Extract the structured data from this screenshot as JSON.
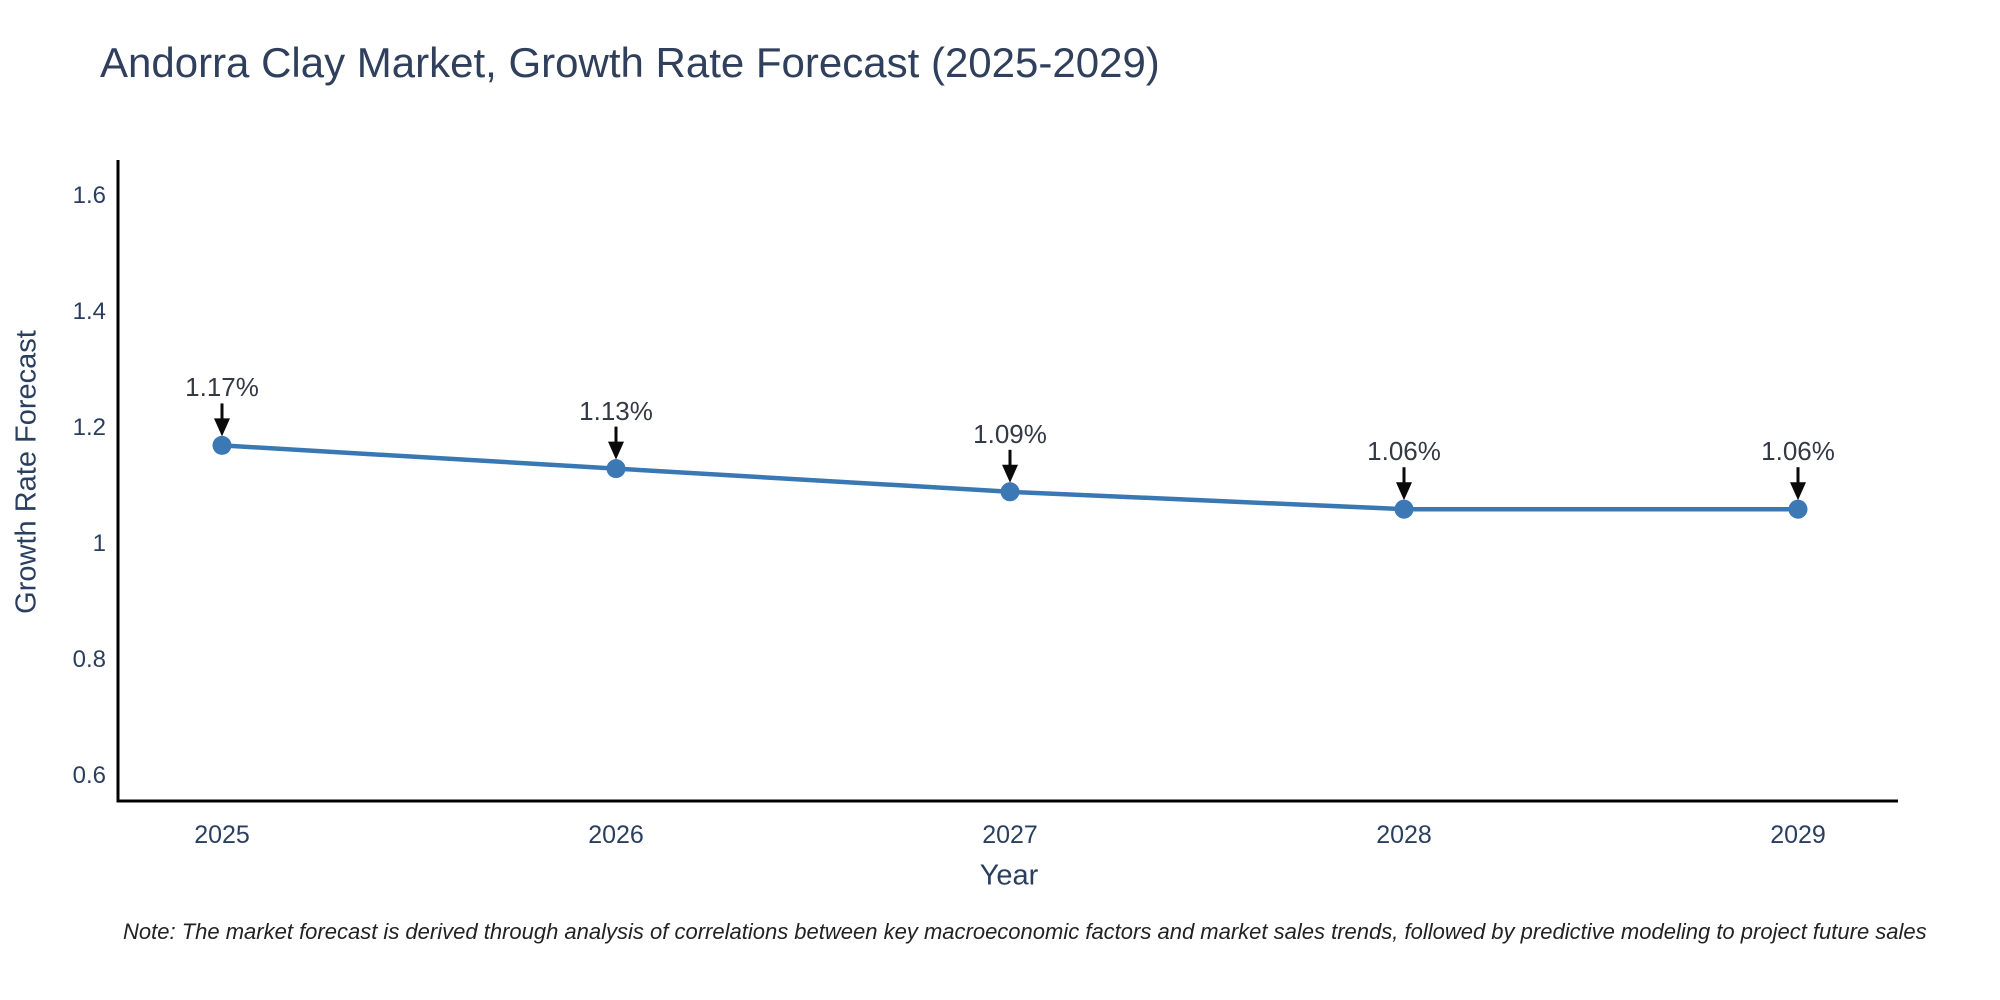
{
  "title": "Andorra Clay Market, Growth Rate Forecast (2025-2029)",
  "chart_data": {
    "type": "line",
    "x": [
      2025,
      2026,
      2027,
      2028,
      2029
    ],
    "values": [
      1.17,
      1.13,
      1.09,
      1.06,
      1.06
    ],
    "point_labels": [
      "1.17%",
      "1.13%",
      "1.09%",
      "1.06%",
      "1.06%"
    ],
    "xlabel": "Year",
    "ylabel": "Growth Rate Forecast",
    "yticks": [
      0.6,
      0.8,
      1,
      1.2,
      1.4,
      1.6
    ],
    "ylim": [
      0.557,
      1.662
    ],
    "grid": false,
    "legend": false,
    "colors": {
      "line": "#3a78b3",
      "marker": "#3c78b4",
      "axis": "#000000",
      "arrow": "#0a0a0a",
      "title_text": "#2f3f5c",
      "tick_text": "#2a3f5f",
      "annotation_text": "#333a45"
    }
  },
  "note": "Note: The market forecast is derived through analysis of correlations between key macroeconomic factors and market sales trends, followed by predictive modeling to project future sales"
}
